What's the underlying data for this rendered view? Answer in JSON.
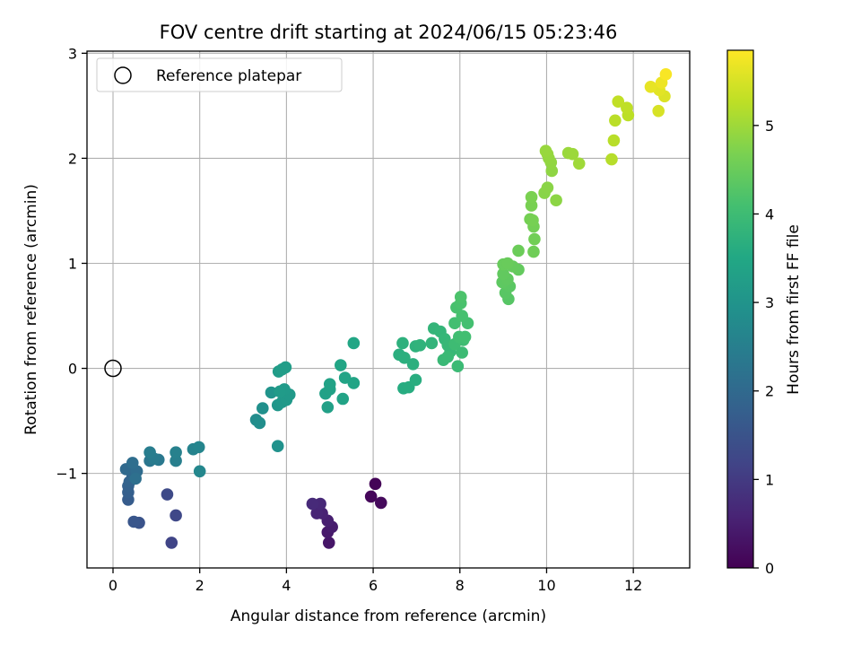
{
  "chart_data": {
    "type": "scatter",
    "title": "FOV centre drift starting at 2024/06/15 05:23:46",
    "xlabel": "Angular distance from reference (arcmin)",
    "ylabel": "Rotation from reference (arcmin)",
    "xlim": [
      -0.6,
      13.3
    ],
    "ylim": [
      -1.9,
      3.02
    ],
    "xticks": [
      0,
      2,
      4,
      6,
      8,
      10,
      12
    ],
    "yticks": [
      -1,
      0,
      1,
      2,
      3
    ],
    "grid": true,
    "legend": {
      "placement": "top-left",
      "entries": [
        "Reference platepar"
      ]
    },
    "reference_point": {
      "x": 0,
      "y": 0
    },
    "colorbar": {
      "label": "Hours from first FF file",
      "range": [
        0,
        5.85
      ],
      "ticks": [
        0,
        1,
        2,
        3,
        4,
        5
      ],
      "colormap": "viridis"
    },
    "points": [
      {
        "x": 6.05,
        "y": -1.1,
        "t": 0.05
      },
      {
        "x": 5.95,
        "y": -1.22,
        "t": 0.1
      },
      {
        "x": 6.18,
        "y": -1.28,
        "t": 0.15
      },
      {
        "x": 4.98,
        "y": -1.66,
        "t": 0.35
      },
      {
        "x": 4.95,
        "y": -1.56,
        "t": 0.4
      },
      {
        "x": 5.05,
        "y": -1.51,
        "t": 0.45
      },
      {
        "x": 4.95,
        "y": -1.45,
        "t": 0.5
      },
      {
        "x": 4.82,
        "y": -1.38,
        "t": 0.55
      },
      {
        "x": 4.7,
        "y": -1.38,
        "t": 0.6
      },
      {
        "x": 4.78,
        "y": -1.29,
        "t": 0.65
      },
      {
        "x": 4.6,
        "y": -1.29,
        "t": 0.7
      },
      {
        "x": 1.35,
        "y": -1.66,
        "t": 1.2
      },
      {
        "x": 1.45,
        "y": -1.4,
        "t": 1.25
      },
      {
        "x": 1.25,
        "y": -1.2,
        "t": 1.3
      },
      {
        "x": 0.6,
        "y": -1.47,
        "t": 1.5
      },
      {
        "x": 0.48,
        "y": -1.46,
        "t": 1.55
      },
      {
        "x": 0.35,
        "y": -1.25,
        "t": 1.7
      },
      {
        "x": 0.35,
        "y": -1.18,
        "t": 1.75
      },
      {
        "x": 0.35,
        "y": -1.12,
        "t": 1.8
      },
      {
        "x": 0.38,
        "y": -1.08,
        "t": 1.85
      },
      {
        "x": 0.45,
        "y": -1.03,
        "t": 1.9
      },
      {
        "x": 0.5,
        "y": -1.0,
        "t": 1.95
      },
      {
        "x": 0.3,
        "y": -0.96,
        "t": 2.0
      },
      {
        "x": 0.55,
        "y": -0.98,
        "t": 2.05
      },
      {
        "x": 0.45,
        "y": -0.9,
        "t": 2.1
      },
      {
        "x": 0.52,
        "y": -1.05,
        "t": 2.15
      },
      {
        "x": 0.85,
        "y": -0.88,
        "t": 2.3
      },
      {
        "x": 1.05,
        "y": -0.87,
        "t": 2.35
      },
      {
        "x": 0.95,
        "y": -0.86,
        "t": 2.4
      },
      {
        "x": 0.85,
        "y": -0.8,
        "t": 2.45
      },
      {
        "x": 1.45,
        "y": -0.88,
        "t": 2.5
      },
      {
        "x": 1.45,
        "y": -0.8,
        "t": 2.55
      },
      {
        "x": 1.85,
        "y": -0.77,
        "t": 2.6
      },
      {
        "x": 1.98,
        "y": -0.75,
        "t": 2.65
      },
      {
        "x": 2.0,
        "y": -0.98,
        "t": 2.7
      },
      {
        "x": 3.3,
        "y": -0.49,
        "t": 2.8
      },
      {
        "x": 3.38,
        "y": -0.52,
        "t": 2.85
      },
      {
        "x": 3.45,
        "y": -0.38,
        "t": 2.9
      },
      {
        "x": 3.8,
        "y": -0.74,
        "t": 2.95
      },
      {
        "x": 3.65,
        "y": -0.23,
        "t": 3.0
      },
      {
        "x": 3.8,
        "y": -0.35,
        "t": 3.05
      },
      {
        "x": 3.9,
        "y": -0.32,
        "t": 3.1
      },
      {
        "x": 4.0,
        "y": -0.3,
        "t": 3.12
      },
      {
        "x": 4.07,
        "y": -0.25,
        "t": 3.14
      },
      {
        "x": 3.95,
        "y": -0.2,
        "t": 3.16
      },
      {
        "x": 3.85,
        "y": -0.22,
        "t": 3.18
      },
      {
        "x": 3.82,
        "y": -0.03,
        "t": 3.2
      },
      {
        "x": 3.9,
        "y": -0.01,
        "t": 3.22
      },
      {
        "x": 3.98,
        "y": 0.01,
        "t": 3.24
      },
      {
        "x": 4.95,
        "y": -0.37,
        "t": 3.3
      },
      {
        "x": 4.9,
        "y": -0.24,
        "t": 3.32
      },
      {
        "x": 5.0,
        "y": -0.2,
        "t": 3.34
      },
      {
        "x": 5.0,
        "y": -0.15,
        "t": 3.36
      },
      {
        "x": 5.3,
        "y": -0.29,
        "t": 3.38
      },
      {
        "x": 5.35,
        "y": -0.09,
        "t": 3.4
      },
      {
        "x": 5.55,
        "y": -0.14,
        "t": 3.42
      },
      {
        "x": 5.25,
        "y": 0.03,
        "t": 3.44
      },
      {
        "x": 5.55,
        "y": 0.24,
        "t": 3.46
      },
      {
        "x": 6.7,
        "y": -0.19,
        "t": 3.6
      },
      {
        "x": 6.82,
        "y": -0.18,
        "t": 3.62
      },
      {
        "x": 6.98,
        "y": -0.11,
        "t": 3.64
      },
      {
        "x": 6.6,
        "y": 0.13,
        "t": 3.66
      },
      {
        "x": 6.72,
        "y": 0.1,
        "t": 3.68
      },
      {
        "x": 6.92,
        "y": 0.04,
        "t": 3.7
      },
      {
        "x": 6.68,
        "y": 0.24,
        "t": 3.72
      },
      {
        "x": 6.98,
        "y": 0.21,
        "t": 3.74
      },
      {
        "x": 7.08,
        "y": 0.22,
        "t": 3.76
      },
      {
        "x": 7.35,
        "y": 0.24,
        "t": 3.8
      },
      {
        "x": 7.4,
        "y": 0.38,
        "t": 3.82
      },
      {
        "x": 7.55,
        "y": 0.35,
        "t": 3.84
      },
      {
        "x": 7.65,
        "y": 0.28,
        "t": 3.86
      },
      {
        "x": 7.72,
        "y": 0.22,
        "t": 3.88
      },
      {
        "x": 7.78,
        "y": 0.16,
        "t": 3.9
      },
      {
        "x": 7.62,
        "y": 0.08,
        "t": 3.92
      },
      {
        "x": 7.72,
        "y": 0.11,
        "t": 3.94
      },
      {
        "x": 7.95,
        "y": 0.02,
        "t": 3.96
      },
      {
        "x": 8.05,
        "y": 0.15,
        "t": 3.98
      },
      {
        "x": 7.88,
        "y": 0.23,
        "t": 4.0
      },
      {
        "x": 8.08,
        "y": 0.27,
        "t": 4.02
      },
      {
        "x": 7.98,
        "y": 0.3,
        "t": 4.04
      },
      {
        "x": 8.12,
        "y": 0.3,
        "t": 4.06
      },
      {
        "x": 7.88,
        "y": 0.43,
        "t": 4.08
      },
      {
        "x": 8.18,
        "y": 0.43,
        "t": 4.1
      },
      {
        "x": 8.05,
        "y": 0.5,
        "t": 4.12
      },
      {
        "x": 7.92,
        "y": 0.58,
        "t": 4.14
      },
      {
        "x": 8.02,
        "y": 0.62,
        "t": 4.16
      },
      {
        "x": 8.02,
        "y": 0.68,
        "t": 4.18
      },
      {
        "x": 9.12,
        "y": 0.66,
        "t": 4.3
      },
      {
        "x": 9.05,
        "y": 0.72,
        "t": 4.32
      },
      {
        "x": 9.15,
        "y": 0.78,
        "t": 4.34
      },
      {
        "x": 9.05,
        "y": 0.81,
        "t": 4.36
      },
      {
        "x": 8.98,
        "y": 0.82,
        "t": 4.38
      },
      {
        "x": 9.1,
        "y": 0.85,
        "t": 4.4
      },
      {
        "x": 9.0,
        "y": 0.9,
        "t": 4.42
      },
      {
        "x": 9.35,
        "y": 0.94,
        "t": 4.44
      },
      {
        "x": 9.22,
        "y": 0.97,
        "t": 4.46
      },
      {
        "x": 9.0,
        "y": 0.99,
        "t": 4.48
      },
      {
        "x": 9.1,
        "y": 1.0,
        "t": 4.5
      },
      {
        "x": 9.35,
        "y": 1.12,
        "t": 4.52
      },
      {
        "x": 9.7,
        "y": 1.11,
        "t": 4.56
      },
      {
        "x": 9.72,
        "y": 1.23,
        "t": 4.58
      },
      {
        "x": 9.7,
        "y": 1.35,
        "t": 4.6
      },
      {
        "x": 9.62,
        "y": 1.42,
        "t": 4.62
      },
      {
        "x": 9.68,
        "y": 1.41,
        "t": 4.64
      },
      {
        "x": 9.65,
        "y": 1.55,
        "t": 4.66
      },
      {
        "x": 9.65,
        "y": 1.63,
        "t": 4.68
      },
      {
        "x": 9.95,
        "y": 1.67,
        "t": 4.8
      },
      {
        "x": 10.02,
        "y": 1.72,
        "t": 4.82
      },
      {
        "x": 10.22,
        "y": 1.6,
        "t": 4.84
      },
      {
        "x": 10.12,
        "y": 1.88,
        "t": 4.86
      },
      {
        "x": 10.1,
        "y": 1.96,
        "t": 4.88
      },
      {
        "x": 10.05,
        "y": 2.0,
        "t": 4.9
      },
      {
        "x": 10.02,
        "y": 2.04,
        "t": 4.92
      },
      {
        "x": 9.98,
        "y": 2.07,
        "t": 4.94
      },
      {
        "x": 10.5,
        "y": 2.05,
        "t": 4.96
      },
      {
        "x": 10.6,
        "y": 2.04,
        "t": 4.98
      },
      {
        "x": 10.75,
        "y": 1.95,
        "t": 5.0
      },
      {
        "x": 11.5,
        "y": 1.99,
        "t": 5.2
      },
      {
        "x": 11.55,
        "y": 2.17,
        "t": 5.22
      },
      {
        "x": 11.58,
        "y": 2.36,
        "t": 5.24
      },
      {
        "x": 11.88,
        "y": 2.41,
        "t": 5.26
      },
      {
        "x": 11.85,
        "y": 2.48,
        "t": 5.28
      },
      {
        "x": 11.65,
        "y": 2.54,
        "t": 5.3
      },
      {
        "x": 12.58,
        "y": 2.45,
        "t": 5.5
      },
      {
        "x": 12.72,
        "y": 2.59,
        "t": 5.55
      },
      {
        "x": 12.6,
        "y": 2.65,
        "t": 5.6
      },
      {
        "x": 12.4,
        "y": 2.68,
        "t": 5.65
      },
      {
        "x": 12.65,
        "y": 2.72,
        "t": 5.7
      },
      {
        "x": 12.75,
        "y": 2.8,
        "t": 5.8
      }
    ]
  }
}
